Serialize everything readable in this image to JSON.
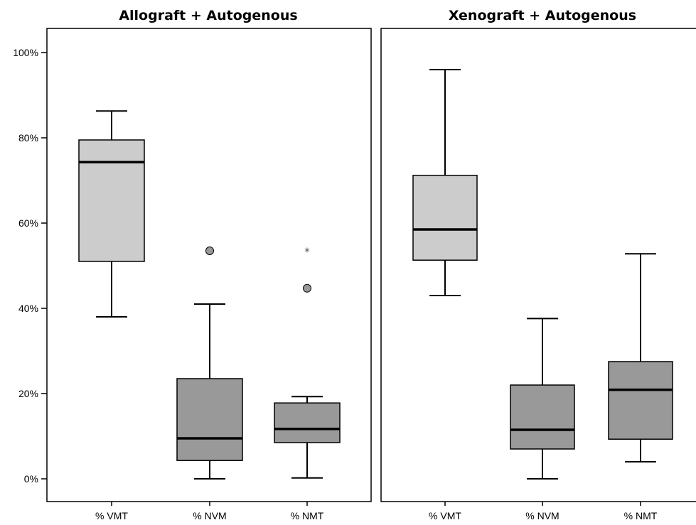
{
  "chart_data": [
    {
      "type": "boxplot",
      "title": "Allograft + Autogenous",
      "ylim": [
        -5,
        106
      ],
      "y_ticks": [
        0,
        20,
        40,
        60,
        80,
        100
      ],
      "y_tick_labels": [
        "0%",
        "20%",
        "40%",
        "60%",
        "80%",
        "100%"
      ],
      "categories": [
        "% VMT",
        "% NVM",
        "% NMT"
      ],
      "boxes": [
        {
          "category": "% VMT",
          "min": 38,
          "q1": 51,
          "median": 74.3,
          "q3": 79.5,
          "max": 86.3,
          "outliers": [],
          "extremes": [],
          "fill": "#cccccc"
        },
        {
          "category": "% NVM",
          "min": 0,
          "q1": 4.3,
          "median": 9.5,
          "q3": 23.5,
          "max": 41,
          "outliers": [
            53.5
          ],
          "extremes": [],
          "fill": "#999999"
        },
        {
          "category": "% NMT",
          "min": 0.2,
          "q1": 8.5,
          "median": 11.7,
          "q3": 17.8,
          "max": 19.3,
          "outliers": [
            44.7
          ],
          "extremes": [
            53.6
          ],
          "fill": "#999999"
        }
      ]
    },
    {
      "type": "boxplot",
      "title": "Xenograft + Autogenous",
      "ylim": [
        -5,
        106
      ],
      "categories": [
        "% VMT",
        "% NVM",
        "% NMT"
      ],
      "boxes": [
        {
          "category": "% VMT",
          "min": 43,
          "q1": 51.3,
          "median": 58.5,
          "q3": 71.2,
          "max": 96,
          "outliers": [],
          "extremes": [],
          "fill": "#cccccc"
        },
        {
          "category": "% NVM",
          "min": 0,
          "q1": 7,
          "median": 11.5,
          "q3": 22,
          "max": 37.6,
          "outliers": [],
          "extremes": [],
          "fill": "#999999"
        },
        {
          "category": "% NMT",
          "min": 4,
          "q1": 9.3,
          "median": 20.9,
          "q3": 27.5,
          "max": 52.8,
          "outliers": [],
          "extremes": [],
          "fill": "#999999"
        }
      ]
    }
  ]
}
